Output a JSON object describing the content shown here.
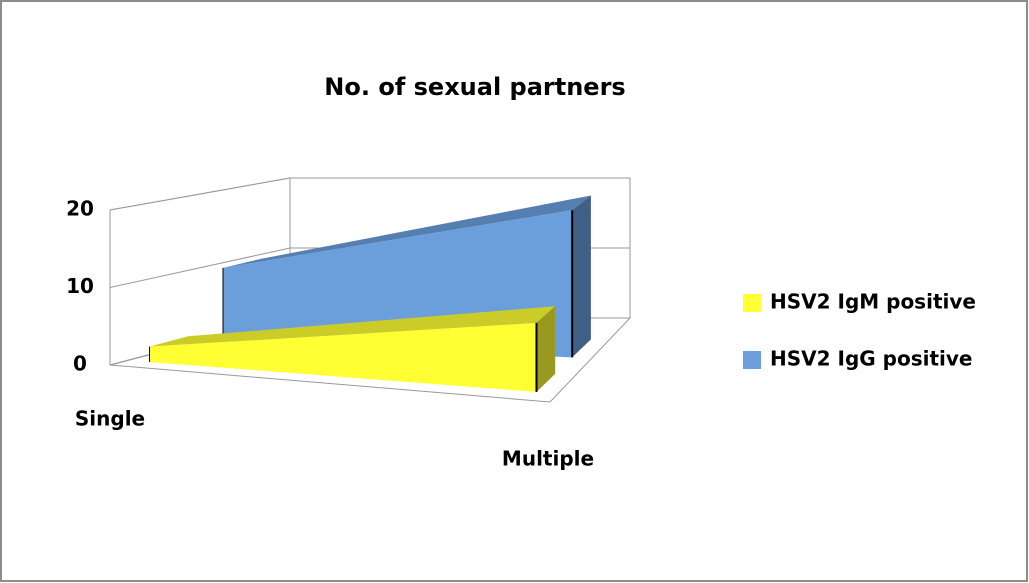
{
  "chart_data": {
    "type": "area3d",
    "title": "No. of sexual partners",
    "categories": [
      "Single",
      "Multiple"
    ],
    "series": [
      {
        "name": "HSV2 IgM positive",
        "color": "#ffff33",
        "values": [
          2,
          9
        ]
      },
      {
        "name": "HSV2 IgG positive",
        "color": "#6a9fdc",
        "values": [
          10,
          20
        ]
      }
    ],
    "ylim": [
      0,
      20
    ],
    "yticks": [
      0,
      10,
      20
    ],
    "grid": true,
    "legend": "right"
  }
}
